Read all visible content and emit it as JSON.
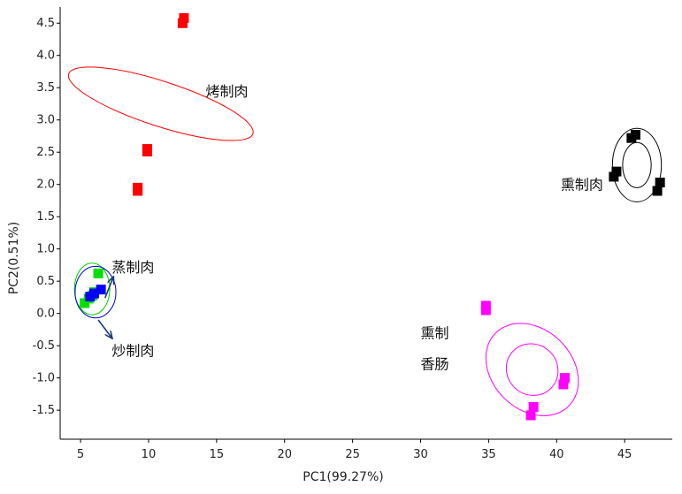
{
  "chart_data": {
    "type": "scatter",
    "title": "",
    "xlabel": "PC1(99.27%)",
    "ylabel": "PC2(0.51%)",
    "xlim": [
      3.5,
      48.5
    ],
    "ylim": [
      -1.95,
      4.75
    ],
    "xticks": [
      5,
      10,
      15,
      20,
      25,
      30,
      35,
      40,
      45
    ],
    "xtick_labels": [
      "5",
      "10",
      "15",
      "20",
      "25",
      "30",
      "35",
      "40",
      "45"
    ],
    "yticks": [
      4.5,
      4.0,
      3.5,
      3.0,
      2.5,
      2.0,
      1.5,
      1.0,
      0.5,
      0.0,
      -0.5,
      -1.0,
      -1.5
    ],
    "ytick_labels": [
      "4.5",
      "4.0",
      "3.5",
      "3.0",
      "2.5",
      "2.0",
      "1.5",
      "1.0",
      "0.5",
      "0.0",
      "-0.5",
      "-1.0",
      "-1.5"
    ],
    "grid": false,
    "series": [
      {
        "name": "烤制肉",
        "color": "#ff0000",
        "points": [
          [
            12.5,
            4.5
          ],
          [
            12.6,
            4.58
          ],
          [
            9.9,
            2.51
          ],
          [
            9.9,
            2.55
          ],
          [
            9.2,
            1.9
          ],
          [
            9.2,
            1.95
          ]
        ]
      },
      {
        "name": "蒸制肉",
        "color": "#00e000",
        "points": [
          [
            6.3,
            0.62
          ],
          [
            5.9,
            0.28
          ],
          [
            5.6,
            0.23
          ],
          [
            5.3,
            0.16
          ],
          [
            6.0,
            0.33
          ]
        ]
      },
      {
        "name": "炒制肉",
        "color": "#0000ff",
        "points": [
          [
            6.5,
            0.37
          ],
          [
            6.0,
            0.31
          ],
          [
            5.7,
            0.26
          ]
        ]
      },
      {
        "name": "熏制肉",
        "color": "#000000",
        "points": [
          [
            45.5,
            2.72
          ],
          [
            45.8,
            2.77
          ],
          [
            44.4,
            2.2
          ],
          [
            44.2,
            2.12
          ],
          [
            47.6,
            2.03
          ],
          [
            47.4,
            1.9
          ]
        ]
      },
      {
        "name": "熏制\n香肠",
        "color": "#ff00ff",
        "points": [
          [
            34.8,
            0.05
          ],
          [
            34.8,
            0.12
          ],
          [
            40.6,
            -1.0
          ],
          [
            40.5,
            -1.1
          ],
          [
            38.3,
            -1.45
          ],
          [
            38.1,
            -1.58
          ]
        ]
      }
    ],
    "ellipses": [
      {
        "color": "#ff0000",
        "cx": 10.9,
        "cy": 3.25,
        "rx": 1.65,
        "ry": 1.5,
        "angle": 72
      },
      {
        "color": "#00cc00",
        "cx": 5.85,
        "cy": 0.38,
        "rx": 1.3,
        "ry": 0.4,
        "angle": 0
      },
      {
        "color": "#0000cc",
        "cx": 6.1,
        "cy": 0.33,
        "rx": 1.5,
        "ry": 0.4,
        "angle": 0
      },
      {
        "color": "#000000",
        "cx": 45.9,
        "cy": 2.3,
        "rx": 1.8,
        "ry": 0.57,
        "angle": 0
      },
      {
        "color": "#000000",
        "cx": 45.9,
        "cy": 2.3,
        "rx": 1.05,
        "ry": 0.35,
        "angle": 0
      },
      {
        "color": "#ff00ff",
        "cx": 38.2,
        "cy": -0.87,
        "rx": 3.8,
        "ry": 0.62,
        "angle": -45
      },
      {
        "color": "#ff00ff",
        "cx": 38.2,
        "cy": -0.87,
        "rx": 1.95,
        "ry": 0.39,
        "angle": -45
      }
    ],
    "annotations": [
      {
        "text": "烤制肉",
        "x": 14.2,
        "y": 3.45
      },
      {
        "text": "熏制肉",
        "x": 40.3,
        "y": 2.0
      },
      {
        "text": "蒸制肉",
        "x": 7.3,
        "y": 0.72
      },
      {
        "text": "炒制肉",
        "x": 7.3,
        "y": -0.57
      },
      {
        "text": "熏制",
        "x": 30.0,
        "y": -0.3
      },
      {
        "text": "香肠",
        "x": 30.0,
        "y": -0.78
      }
    ],
    "arrows": [
      {
        "from": [
          6.8,
          0.24
        ],
        "to": [
          7.4,
          0.56
        ]
      },
      {
        "from": [
          6.3,
          -0.1
        ],
        "to": [
          7.3,
          -0.38
        ]
      }
    ],
    "arrow_color": "#1a3a7a"
  }
}
